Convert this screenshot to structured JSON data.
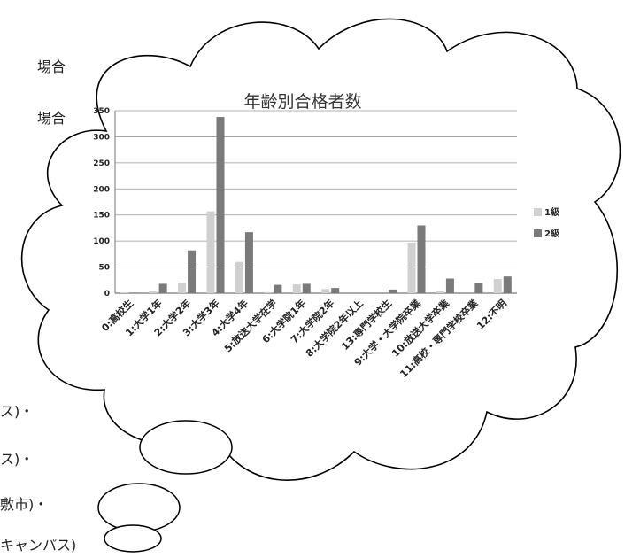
{
  "background_text": {
    "line1": "場合",
    "line2": "場合",
    "line3": "ス)・",
    "line4": "ス)・",
    "line5": "敷市)・",
    "line6": "キャンパス)"
  },
  "chart_data": {
    "type": "bar",
    "title": "年齢別合格者数",
    "xlabel": "",
    "ylabel": "",
    "ylim": [
      0,
      350
    ],
    "yticks": [
      0,
      50,
      100,
      150,
      200,
      250,
      300,
      350
    ],
    "grid": true,
    "legend_position": "right",
    "categories": [
      "0:高校生",
      "1:大学1年",
      "2:大学2年",
      "3:大学3年",
      "4:大学4年",
      "5:放送大学在学",
      "6:大学院1年",
      "7:大学院2年",
      "8:大学院2年以上",
      "13:専門学校生",
      "9:大学・大学院卒業",
      "10:放送大学卒業",
      "11:高校・専門学校卒業",
      "12:不明"
    ],
    "series": [
      {
        "name": "1級",
        "color": "#d0d0d0",
        "values": [
          1,
          5,
          20,
          157,
          60,
          2,
          17,
          8,
          0,
          0,
          97,
          5,
          0,
          27
        ]
      },
      {
        "name": "2級",
        "color": "#7a7a7a",
        "values": [
          1,
          18,
          82,
          338,
          117,
          16,
          18,
          10,
          0,
          7,
          130,
          28,
          19,
          32
        ]
      }
    ]
  }
}
